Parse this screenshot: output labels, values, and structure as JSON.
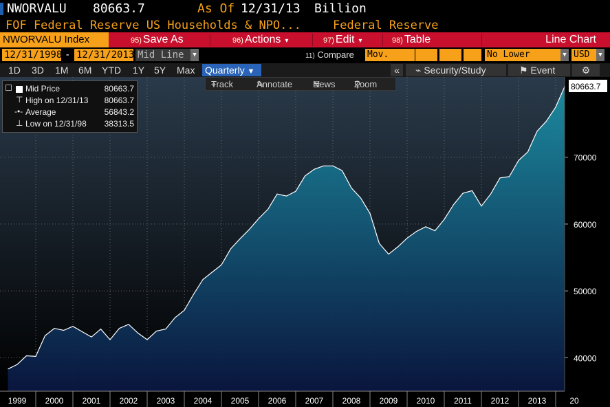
{
  "header": {
    "ticker": "NWORVALU",
    "last_value": "80663.7",
    "as_of_label": "As Of",
    "as_of_date": "12/31/13",
    "units": "Billion",
    "description": "FOF Federal Reserve US Households & NPO...",
    "source": "Federal Reserve"
  },
  "command_bar": {
    "security": "NWORVALU Index",
    "save_num": "95)",
    "save_label": "Save As",
    "actions_num": "96)",
    "actions_label": "Actions",
    "edit_num": "97)",
    "edit_label": "Edit",
    "table_num": "98)",
    "table_label": "Table",
    "chart_type": "Line Chart"
  },
  "date_bar": {
    "start_date": "12/31/1998",
    "dash": "-",
    "end_date": "12/31/2013",
    "field": "Mid Line",
    "compare_num": "11)",
    "compare_label": "Compare",
    "mov_avgs": "Mov. Avgs",
    "lower_chart": "No Lower Chart",
    "currency": "USD"
  },
  "period_bar": {
    "periods": [
      "1D",
      "3D",
      "1M",
      "6M",
      "YTD",
      "1Y",
      "5Y",
      "Max"
    ],
    "frequency": "Quarterly",
    "collapse": "«",
    "security_study": "Security/Study",
    "event": "Event",
    "settings_glyph": "⚙"
  },
  "chart_tools": {
    "track": "Track",
    "annotate": "Annotate",
    "news": "News",
    "zoom": "Zoom"
  },
  "legend": {
    "rows": [
      {
        "label": "Mid Price",
        "value": "80663.7"
      },
      {
        "label": "High on 12/31/13",
        "value": "80663.7"
      },
      {
        "label": "Average",
        "value": "56843.2"
      },
      {
        "label": "Low on 12/31/98",
        "value": "38313.5"
      }
    ]
  },
  "colors": {
    "accent_orange": "#f7a11a",
    "command_red": "#c8102e",
    "area_top": "#1b8ea3",
    "area_bottom": "#0a1640",
    "line": "#ffffff"
  },
  "chart_data": {
    "type": "area",
    "title": "",
    "xlabel": "",
    "ylabel": "",
    "last_value_label": "80663.7",
    "ylim": [
      35000,
      82000
    ],
    "y_ticks": [
      40000,
      50000,
      60000,
      70000
    ],
    "x_ticks": [
      "1999",
      "2000",
      "2001",
      "2002",
      "2003",
      "2004",
      "2005",
      "2006",
      "2007",
      "2008",
      "2009",
      "2010",
      "2011",
      "2012",
      "2013",
      "20"
    ],
    "x": [
      1998.75,
      1999.0,
      1999.25,
      1999.5,
      1999.75,
      2000.0,
      2000.25,
      2000.5,
      2000.75,
      2001.0,
      2001.25,
      2001.5,
      2001.75,
      2002.0,
      2002.25,
      2002.5,
      2002.75,
      2003.0,
      2003.25,
      2003.5,
      2003.75,
      2004.0,
      2004.25,
      2004.5,
      2004.75,
      2005.0,
      2005.25,
      2005.5,
      2005.75,
      2006.0,
      2006.25,
      2006.5,
      2006.75,
      2007.0,
      2007.25,
      2007.5,
      2007.75,
      2008.0,
      2008.25,
      2008.5,
      2008.75,
      2009.0,
      2009.25,
      2009.5,
      2009.75,
      2010.0,
      2010.25,
      2010.5,
      2010.75,
      2011.0,
      2011.25,
      2011.5,
      2011.75,
      2012.0,
      2012.25,
      2012.5,
      2012.75,
      2013.0,
      2013.25,
      2013.5,
      2013.75
    ],
    "values": [
      38313.5,
      39000,
      40300,
      40200,
      43300,
      44400,
      44100,
      44700,
      43900,
      43100,
      44300,
      42700,
      44400,
      45000,
      43700,
      42700,
      44000,
      44300,
      46000,
      47100,
      49500,
      51700,
      52800,
      53900,
      56300,
      57800,
      59200,
      60800,
      62200,
      64500,
      64200,
      64900,
      67200,
      68200,
      68700,
      68700,
      68000,
      65400,
      63900,
      61600,
      57100,
      55500,
      56600,
      57900,
      58900,
      59600,
      59000,
      60700,
      62900,
      64600,
      65000,
      62700,
      64500,
      66900,
      67100,
      69500,
      70800,
      73900,
      75400,
      77500,
      80663.7
    ]
  }
}
